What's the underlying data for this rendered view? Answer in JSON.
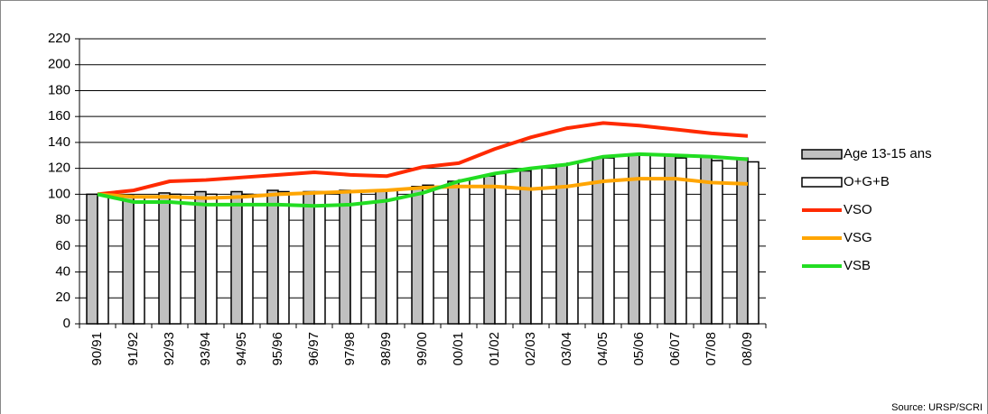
{
  "chart_data": {
    "type": "combo",
    "source": "Source: URSP/SCRI",
    "categories": [
      "90/91",
      "91/92",
      "92/93",
      "93/94",
      "94/95",
      "95/96",
      "96/97",
      "97/98",
      "98/99",
      "99/00",
      "00/01",
      "01/02",
      "02/03",
      "03/04",
      "04/05",
      "05/06",
      "06/07",
      "07/08",
      "08/09"
    ],
    "series": [
      {
        "name": "Age 13-15 ans",
        "type": "bar",
        "color": "#c0c0c0",
        "values": [
          100,
          99,
          101,
          102,
          102,
          103,
          102,
          103,
          103,
          106,
          110,
          114,
          118,
          123,
          128,
          131,
          130,
          129,
          128
        ]
      },
      {
        "name": "O+G+B",
        "type": "bar",
        "color": "#ffffff",
        "values": [
          100,
          98,
          100,
          100,
          100,
          102,
          102,
          102,
          103,
          107,
          111,
          116,
          120,
          124,
          128,
          130,
          128,
          126,
          125
        ]
      },
      {
        "name": "VSO",
        "type": "line",
        "color": "#ff2a00",
        "values": [
          100,
          103,
          110,
          111,
          113,
          115,
          117,
          115,
          114,
          121,
          124,
          135,
          144,
          151,
          155,
          153,
          150,
          147,
          145
        ]
      },
      {
        "name": "VSG",
        "type": "line",
        "color": "#ffa500",
        "values": [
          100,
          98,
          98,
          97,
          98,
          100,
          101,
          102,
          103,
          105,
          106,
          106,
          104,
          106,
          110,
          112,
          112,
          109,
          108
        ]
      },
      {
        "name": "VSB",
        "type": "line",
        "color": "#22dd22",
        "values": [
          100,
          94,
          94,
          92,
          92,
          92,
          91,
          92,
          95,
          101,
          110,
          116,
          120,
          123,
          129,
          131,
          130,
          129,
          127
        ]
      }
    ],
    "ylim": [
      0,
      220
    ],
    "yticks": [
      0,
      20,
      40,
      60,
      80,
      100,
      120,
      140,
      160,
      180,
      200,
      220
    ],
    "grid": true
  }
}
